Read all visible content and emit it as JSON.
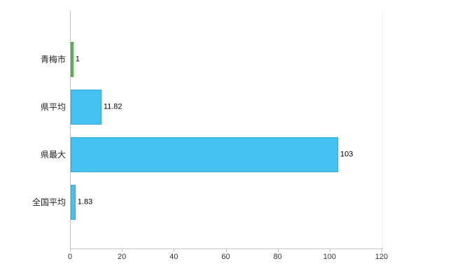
{
  "chart_data": {
    "type": "bar",
    "orientation": "horizontal",
    "title": "",
    "xlabel": "",
    "ylabel": "",
    "categories": [
      "青梅市",
      "県平均",
      "県最大",
      "全国平均"
    ],
    "values": [
      1,
      11.82,
      103,
      1.83
    ],
    "value_labels": [
      "1",
      "11.82",
      "103",
      "1.83"
    ],
    "bar_colors": [
      "#5cb85c",
      "#45c2ef",
      "#45c2ef",
      "#45c2ef"
    ],
    "bar_border_colors": [
      "#4aa047",
      "#2fa9d8",
      "#2fa9d8",
      "#2fa9d8"
    ],
    "xlim": [
      0,
      120
    ],
    "x_ticks": [
      0,
      20,
      40,
      60,
      80,
      100,
      120
    ],
    "grid": false,
    "legend": "none",
    "background_color": "#ffffff",
    "axis_color": "#c3c3c3"
  }
}
